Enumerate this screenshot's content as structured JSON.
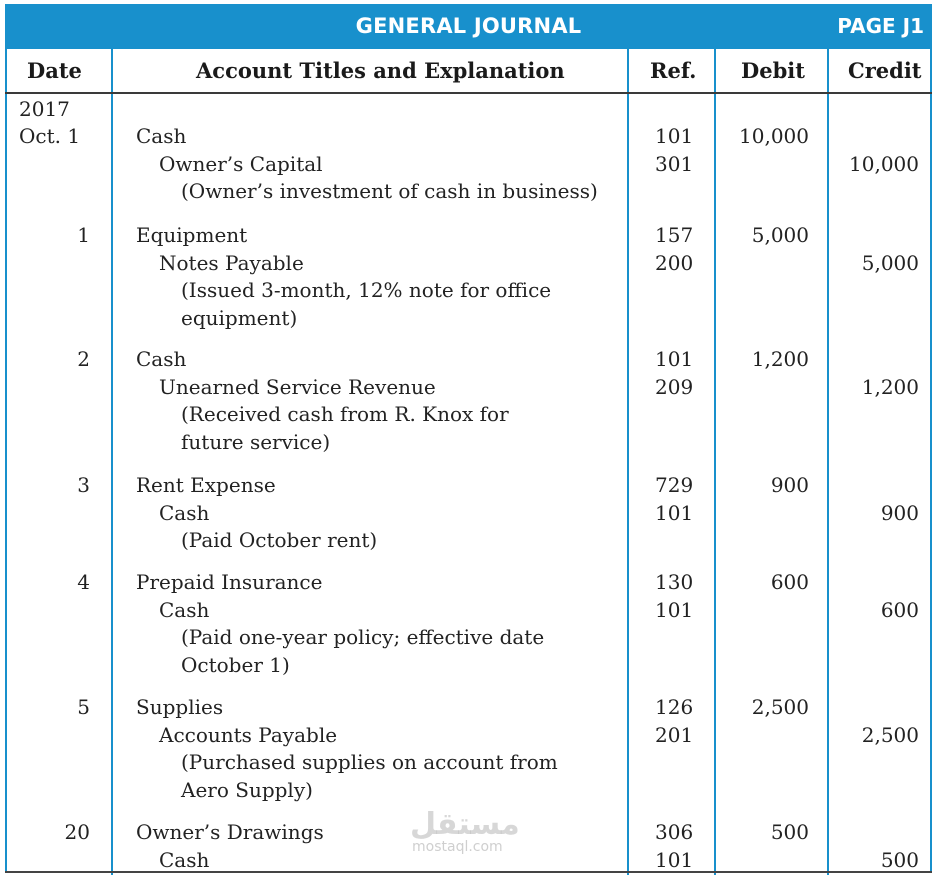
{
  "header": {
    "title": "GENERAL JOURNAL",
    "page": "PAGE J1"
  },
  "columns": {
    "date": "Date",
    "account": "Account Titles and Explanation",
    "ref": "Ref.",
    "debit": "Debit",
    "credit": "Credit"
  },
  "year": "2017",
  "entries": [
    {
      "date": "Oct.  1",
      "debit_account": "Cash",
      "debit_ref": "101",
      "debit": "10,000",
      "credit_account": "Owner’s Capital",
      "credit_ref": "301",
      "credit": "10,000",
      "explanation": [
        "(Owner’s investment of cash in business)"
      ]
    },
    {
      "date": "1",
      "debit_account": "Equipment",
      "debit_ref": "157",
      "debit": "5,000",
      "credit_account": "Notes Payable",
      "credit_ref": "200",
      "credit": "5,000",
      "explanation": [
        "(Issued 3-month, 12% note for office",
        "equipment)"
      ]
    },
    {
      "date": "2",
      "debit_account": "Cash",
      "debit_ref": "101",
      "debit": "1,200",
      "credit_account": "Unearned Service Revenue",
      "credit_ref": "209",
      "credit": "1,200",
      "explanation": [
        "(Received cash from R. Knox for",
        "future service)"
      ]
    },
    {
      "date": "3",
      "debit_account": "Rent Expense",
      "debit_ref": "729",
      "debit": "900",
      "credit_account": "Cash",
      "credit_ref": "101",
      "credit": "900",
      "explanation": [
        "(Paid October rent)"
      ]
    },
    {
      "date": "4",
      "debit_account": "Prepaid Insurance",
      "debit_ref": "130",
      "debit": "600",
      "credit_account": "Cash",
      "credit_ref": "101",
      "credit": "600",
      "explanation": [
        "(Paid one-year policy; effective date",
        "October 1)"
      ]
    },
    {
      "date": "5",
      "debit_account": "Supplies",
      "debit_ref": "126",
      "debit": "2,500",
      "credit_account": "Accounts Payable",
      "credit_ref": "201",
      "credit": "2,500",
      "explanation": [
        "(Purchased supplies on account from",
        "Aero Supply)"
      ]
    },
    {
      "date": "20",
      "debit_account": "Owner’s Drawings",
      "debit_ref": "306",
      "debit": "500",
      "credit_account": "Cash",
      "credit_ref": "101",
      "credit": "500",
      "explanation": []
    }
  ],
  "watermark": {
    "logo": "مستقل",
    "url": "mostaql.com"
  },
  "colors": {
    "accent": "#1890cc"
  }
}
